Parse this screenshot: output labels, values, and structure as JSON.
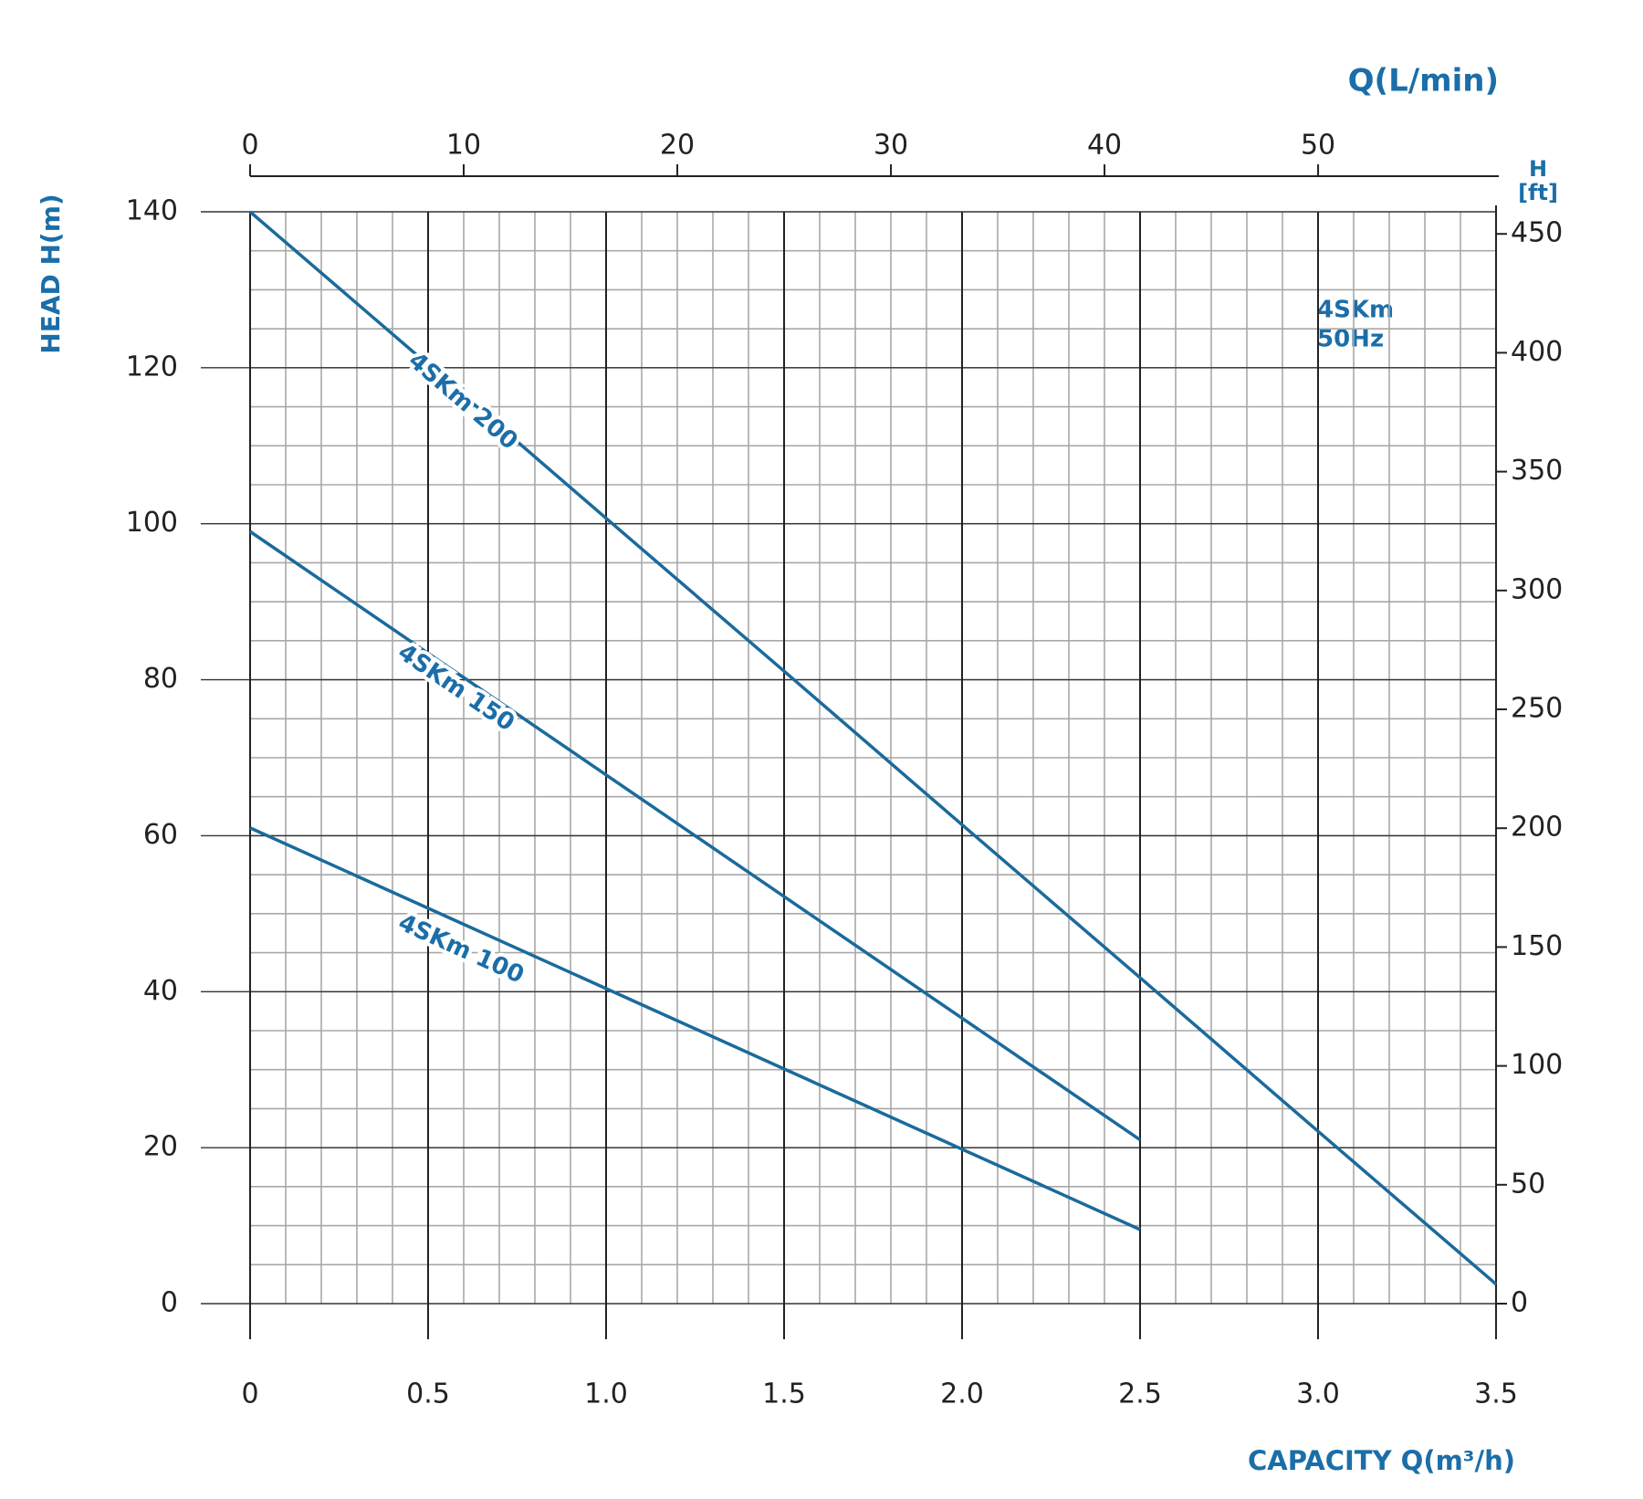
{
  "chart_data": {
    "type": "line",
    "y_label": "HEAD H(m)",
    "x_label": "CAPACITY Q(m³/h)",
    "x2_label": "Q(L/min)",
    "y2_label": [
      "H",
      "[ft]"
    ],
    "annotation": [
      "4SKm",
      "50Hz"
    ],
    "x": [
      0,
      0.5,
      1.0,
      1.5,
      2.0,
      2.5,
      3.0,
      3.5
    ],
    "series": [
      {
        "name": "4SKm 200",
        "color": "#1b6a9c",
        "values": [
          140,
          120.4,
          100.7,
          81.1,
          61.4,
          41.8,
          22.1,
          2.5
        ]
      },
      {
        "name": "4SKm 150",
        "color": "#1b6a9c",
        "values": [
          99,
          83.4,
          67.8,
          52.2,
          36.6,
          21,
          null,
          null
        ]
      },
      {
        "name": "4SKm 100",
        "color": "#1b6a9c",
        "values": [
          61,
          50.7,
          40.4,
          30.1,
          19.8,
          9.5,
          null,
          null
        ]
      }
    ],
    "xlim": [
      0,
      3.5
    ],
    "xticks": [
      0,
      0.5,
      {
        "value": 1,
        "label": "1.0"
      },
      1.5,
      {
        "value": 2,
        "label": "2.0"
      },
      2.5,
      {
        "value": 3,
        "label": "3.0"
      },
      3.5
    ],
    "ylim": [
      0,
      140
    ],
    "yticks": [
      0,
      20,
      40,
      60,
      80,
      100,
      120,
      140
    ],
    "x2lim": [
      0,
      58.33
    ],
    "x2ticks": [
      0,
      10,
      20,
      30,
      40,
      50
    ],
    "y2lim": [
      0,
      459.3
    ],
    "y2ticks": [
      0,
      50,
      100,
      150,
      200,
      250,
      300,
      350,
      400,
      450
    ],
    "grid": true,
    "minor_grid": {
      "x_step": 0.1,
      "y_step": 5
    }
  }
}
